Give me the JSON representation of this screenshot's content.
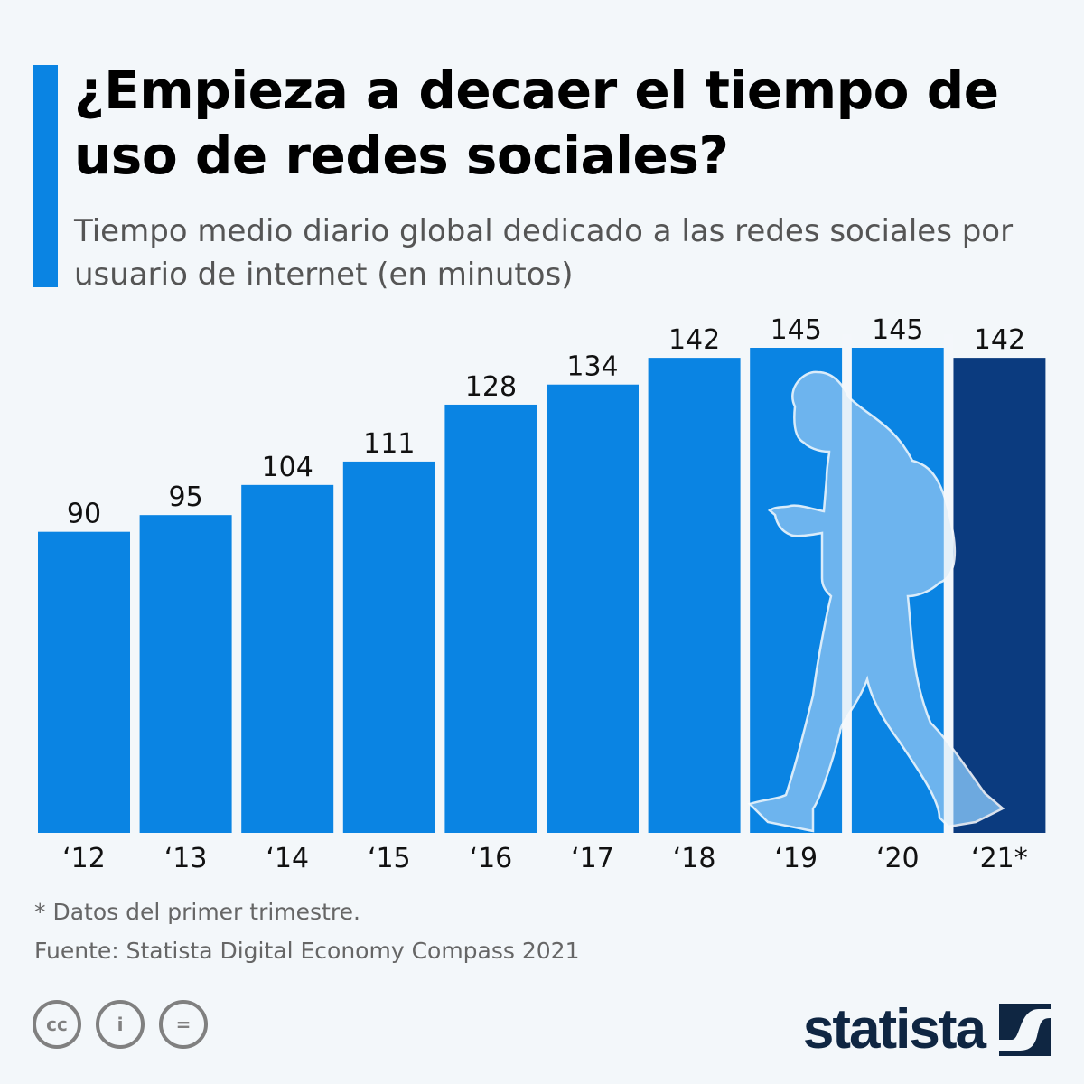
{
  "title": "¿Empieza a decaer el tiempo de uso de redes sociales?",
  "subtitle": "Tiempo medio diario global dedicado a las redes sociales por usuario de internet (en minutos)",
  "footnote": "* Datos del primer trimestre.",
  "source": "Fuente: Statista Digital Economy Compass 2021",
  "brand": "statista",
  "colors": {
    "bar": "#0a84e3",
    "bar_highlight": "#0b3b7f",
    "accent": "#0a84e3",
    "background": "#f3f7fa"
  },
  "icons": [
    "creative-commons-icon",
    "attribution-icon",
    "no-derivatives-icon",
    "statista-logo-icon"
  ],
  "chart_data": {
    "type": "bar",
    "categories": [
      "‘12",
      "‘13",
      "‘14",
      "‘15",
      "‘16",
      "‘17",
      "‘18",
      "‘19",
      "‘20",
      "‘21*"
    ],
    "values": [
      90,
      95,
      104,
      111,
      128,
      134,
      142,
      145,
      145,
      142
    ],
    "ylim": [
      0,
      145
    ],
    "grid": false,
    "data_labels": true,
    "highlighted_category": "‘21*"
  }
}
